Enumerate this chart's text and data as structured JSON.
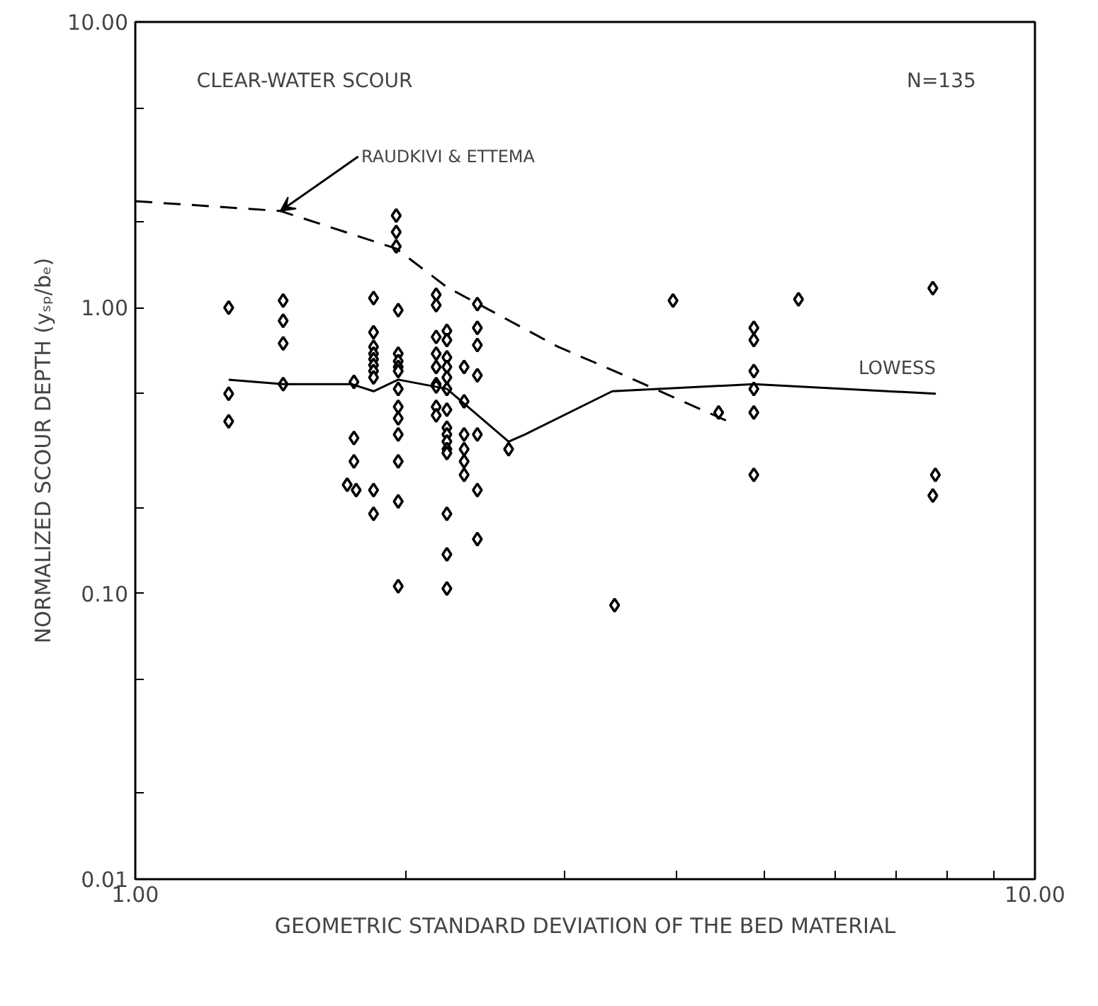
{
  "chart_data": {
    "type": "scatter",
    "xlabel": "GEOMETRIC STANDARD DEVIATION OF THE BED MATERIAL",
    "ylabel": "NORMALIZED SCOUR DEPTH (yₛₚ/bₑ)",
    "log": "xy",
    "grid": false,
    "marker": "diamond",
    "xlim": [
      1,
      10
    ],
    "ylim": [
      0.01,
      10
    ],
    "xticks": [
      {
        "value": 1,
        "label": "1.00"
      },
      {
        "value": 2,
        "label": null
      },
      {
        "value": 3,
        "label": null
      },
      {
        "value": 4,
        "label": null
      },
      {
        "value": 5,
        "label": null
      },
      {
        "value": 6,
        "label": null
      },
      {
        "value": 7,
        "label": null
      },
      {
        "value": 8,
        "label": null
      },
      {
        "value": 9,
        "label": null
      },
      {
        "value": 10,
        "label": "10.00"
      }
    ],
    "yticks": [
      {
        "value": 0.01,
        "label": "0.01"
      },
      {
        "value": 0.02,
        "label": null
      },
      {
        "value": 0.05,
        "label": null
      },
      {
        "value": 0.1,
        "label": "0.10"
      },
      {
        "value": 0.2,
        "label": null
      },
      {
        "value": 0.5,
        "label": null
      },
      {
        "value": 1,
        "label": "1.00"
      },
      {
        "value": 2,
        "label": null
      },
      {
        "value": 5,
        "label": null
      },
      {
        "value": 10,
        "label": "10.00"
      }
    ],
    "annotations": [
      "CLEAR-WATER SCOUR",
      "N=135"
    ],
    "series": [
      {
        "color": "#000000",
        "x": [
          1.27,
          1.27,
          1.27,
          1.46,
          1.46,
          1.46,
          1.46,
          1.75,
          1.75,
          1.75,
          1.72,
          1.76,
          1.84,
          1.84,
          1.84,
          1.84,
          1.84,
          1.84,
          1.84,
          1.84,
          1.84,
          1.84,
          1.95,
          1.95,
          1.95,
          1.96,
          1.96,
          1.96,
          1.96,
          1.96,
          1.96,
          1.96,
          1.96,
          1.96,
          1.96,
          1.96,
          1.96,
          2.16,
          2.16,
          2.16,
          2.16,
          2.16,
          2.16,
          2.16,
          2.16,
          2.16,
          2.22,
          2.22,
          2.22,
          2.22,
          2.22,
          2.22,
          2.22,
          2.22,
          2.22,
          2.22,
          2.22,
          2.22,
          2.22,
          2.22,
          2.22,
          2.32,
          2.32,
          2.32,
          2.32,
          2.32,
          2.32,
          2.4,
          2.4,
          2.4,
          2.4,
          2.4,
          2.4,
          2.4,
          2.6,
          3.96,
          5.46,
          7.7,
          4.87,
          4.87,
          4.87,
          4.87,
          4.87,
          4.87,
          4.45,
          3.41,
          7.75,
          7.7
        ],
        "values": [
          1.0,
          0.5,
          0.4,
          1.06,
          0.9,
          0.75,
          0.54,
          0.55,
          0.35,
          0.29,
          0.24,
          0.23,
          1.08,
          0.82,
          0.73,
          0.69,
          0.66,
          0.63,
          0.6,
          0.57,
          0.23,
          0.19,
          2.1,
          1.84,
          1.64,
          0.98,
          0.69,
          0.65,
          0.62,
          0.6,
          0.52,
          0.45,
          0.41,
          0.36,
          0.29,
          0.21,
          0.106,
          1.11,
          1.02,
          0.79,
          0.69,
          0.62,
          0.54,
          0.53,
          0.45,
          0.42,
          0.83,
          0.77,
          0.67,
          0.62,
          0.57,
          0.52,
          0.44,
          0.38,
          0.36,
          0.34,
          0.32,
          0.31,
          0.19,
          0.137,
          0.104,
          0.62,
          0.47,
          0.36,
          0.32,
          0.29,
          0.26,
          1.03,
          0.85,
          0.74,
          0.58,
          0.36,
          0.23,
          0.155,
          0.32,
          1.06,
          1.07,
          1.17,
          0.85,
          0.77,
          0.6,
          0.52,
          0.43,
          0.26,
          0.43,
          0.091,
          0.26,
          0.22
        ]
      },
      {
        "name": "RAUDKIVI & ETTEMA",
        "type": "line",
        "line_style": "dashed",
        "marker": "none",
        "color": "#000000",
        "x": [
          1.0,
          1.45,
          1.95,
          2.22,
          2.95,
          3.41,
          4.56
        ],
        "values": [
          2.36,
          2.18,
          1.61,
          1.18,
          0.73,
          0.6,
          0.4
        ]
      },
      {
        "name": "LOWESS",
        "type": "line",
        "line_style": "solid",
        "marker": "none",
        "color": "#000000",
        "x": [
          1.27,
          1.46,
          1.74,
          1.84,
          1.96,
          2.22,
          2.6,
          2.71,
          3.39,
          4.87,
          7.76
        ],
        "values": [
          0.56,
          0.54,
          0.54,
          0.51,
          0.56,
          0.52,
          0.34,
          0.36,
          0.51,
          0.54,
          0.5
        ]
      }
    ]
  }
}
